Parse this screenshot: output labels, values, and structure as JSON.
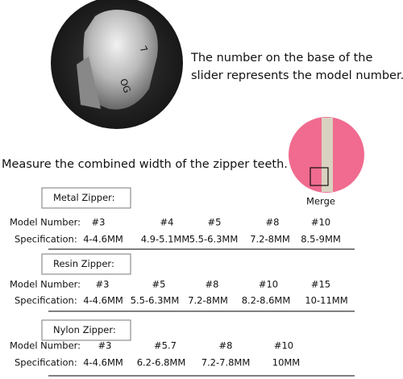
{
  "intro": {
    "line1": "The number on the base of the",
    "line2": "slider represents the model number.",
    "slider_marks": [
      "7",
      "OG"
    ]
  },
  "measure": "Measure the combined width of the zipper teeth.",
  "merge": "Merge",
  "row_labels": {
    "model": "Model Number:",
    "spec": "Specification:"
  },
  "sections": [
    {
      "title": "Metal Zipper:",
      "models": [
        "#3",
        "#4",
        "#5",
        "#8",
        "#10"
      ],
      "specs": [
        "4-4.6MM",
        "4.9-5.1MM",
        "5.5-6.3MM",
        "7.2-8MM",
        "8.5-9MM"
      ]
    },
    {
      "title": "Resin Zipper:",
      "models": [
        "#3",
        "#5",
        "#8",
        "#10",
        "#15"
      ],
      "specs": [
        "4-4.6MM",
        "5.5-6.3MM",
        "7.2-8MM",
        "8.2-8.6MM",
        "10-11MM"
      ]
    },
    {
      "title": "Nylon Zipper:",
      "models": [
        "#3",
        "#5.7",
        "#8",
        "#10"
      ],
      "specs": [
        "4-4.6MM",
        "6.2-6.8MM",
        "7.2-7.8MM",
        "10MM"
      ]
    }
  ]
}
